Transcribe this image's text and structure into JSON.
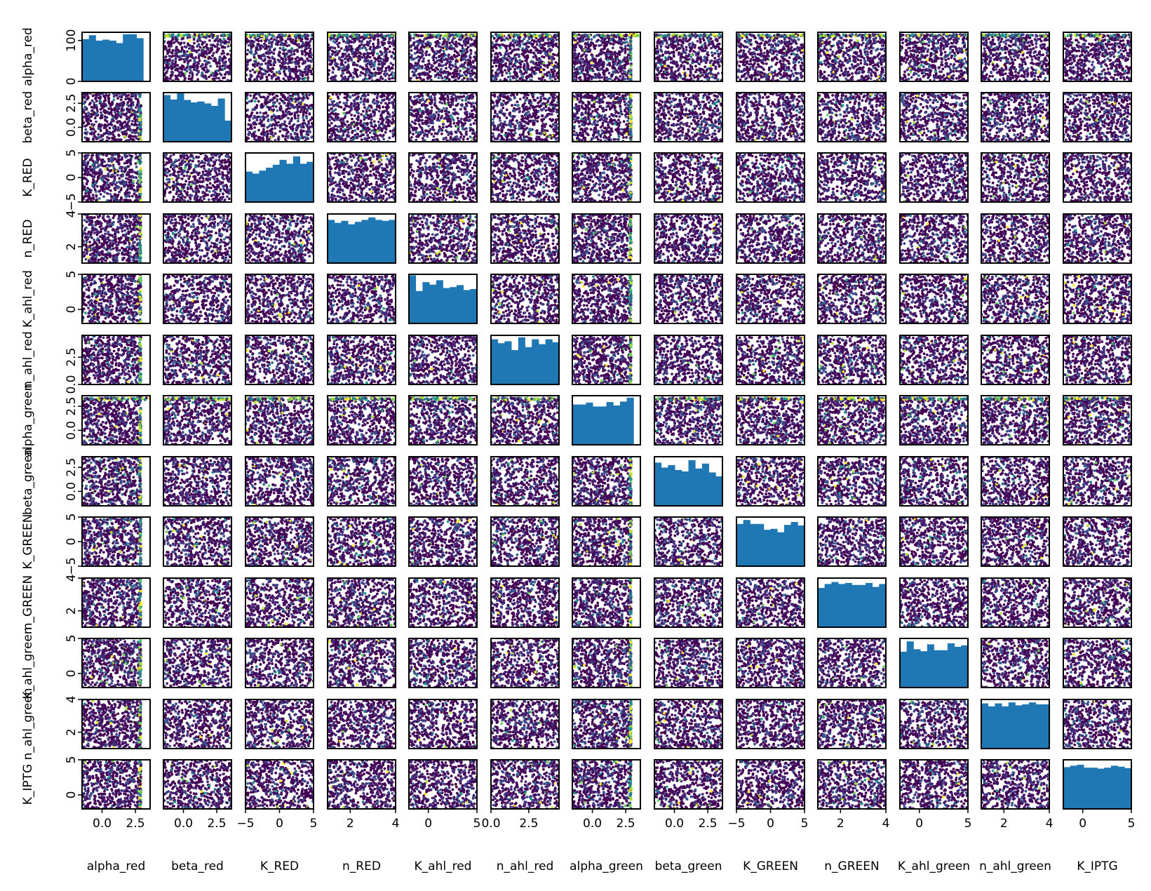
{
  "chart_data": {
    "type": "scatter",
    "layout": "pair-plot",
    "diagonal": "histogram",
    "off_diagonal": "scatter",
    "histogram_color": "#1f77b4",
    "scatter_colormap": "viridis",
    "histogram_bins": 10,
    "variables": [
      {
        "name": "alpha_red",
        "range": [
          -1.5,
          3.6
        ],
        "xticks": [
          {
            "v": 0,
            "label": "0.0"
          },
          {
            "v": 2.5,
            "label": "2.5"
          }
        ],
        "yrange": [
          0,
          120
        ],
        "yticks": [
          {
            "v": 0,
            "label": "0"
          },
          {
            "v": 100,
            "label": "100"
          }
        ],
        "hist": [
          0.86,
          0.94,
          0.83,
          0.85,
          0.83,
          0.78,
          0.96,
          0.96,
          0.88,
          0.0
        ]
      },
      {
        "name": "beta_red",
        "range": [
          -1.5,
          3.6
        ],
        "xticks": [
          {
            "v": 0,
            "label": "0.0"
          },
          {
            "v": 2.5,
            "label": "2.5"
          }
        ],
        "yrange": [
          -1.5,
          3.6
        ],
        "yticks": [
          {
            "v": 0,
            "label": "0.0"
          },
          {
            "v": 2.5,
            "label": "2.5"
          }
        ],
        "hist": [
          0.95,
          0.86,
          0.99,
          0.85,
          0.8,
          0.82,
          0.78,
          0.73,
          0.88,
          0.43
        ]
      },
      {
        "name": "K_RED",
        "range": [
          -5,
          5
        ],
        "xticks": [
          {
            "v": -5,
            "label": "−5"
          },
          {
            "v": 0,
            "label": "0"
          },
          {
            "v": 5,
            "label": "5"
          }
        ],
        "yrange": [
          -5,
          5
        ],
        "yticks": [
          {
            "v": -5,
            "label": "−5"
          },
          {
            "v": 0,
            "label": "0"
          },
          {
            "v": 5,
            "label": "5"
          }
        ],
        "hist": [
          0.62,
          0.58,
          0.64,
          0.7,
          0.76,
          0.86,
          0.78,
          0.93,
          0.78,
          0.82
        ]
      },
      {
        "name": "n_RED",
        "range": [
          1,
          4
        ],
        "xticks": [
          {
            "v": 2,
            "label": "2"
          },
          {
            "v": 4,
            "label": "4"
          }
        ],
        "yrange": [
          1,
          4
        ],
        "yticks": [
          {
            "v": 2,
            "label": "2"
          },
          {
            "v": 4,
            "label": "4"
          }
        ],
        "hist": [
          0.88,
          0.82,
          0.86,
          0.79,
          0.84,
          0.88,
          0.93,
          0.88,
          0.86,
          0.88
        ]
      },
      {
        "name": "K_ahl_red",
        "range": [
          -2,
          5
        ],
        "xticks": [
          {
            "v": 0,
            "label": "0"
          },
          {
            "v": 5,
            "label": "5"
          }
        ],
        "yrange": [
          -2,
          5
        ],
        "yticks": [
          {
            "v": 0,
            "label": "0"
          },
          {
            "v": 5,
            "label": "5"
          }
        ],
        "hist": [
          0.98,
          0.66,
          0.84,
          0.79,
          0.88,
          0.72,
          0.74,
          0.78,
          0.68,
          0.7
        ]
      },
      {
        "name": "n_ahl_red",
        "range": [
          0,
          4.5
        ],
        "xticks": [
          {
            "v": 0,
            "label": "0.0"
          },
          {
            "v": 2.5,
            "label": "2.5"
          }
        ],
        "yrange": [
          0,
          4.5
        ],
        "yticks": [
          {
            "v": 0,
            "label": "0.0"
          },
          {
            "v": 2.5,
            "label": "2.5"
          }
        ],
        "hist": [
          0.92,
          0.84,
          0.88,
          0.7,
          0.96,
          0.76,
          0.92,
          0.82,
          0.92,
          0.86
        ]
      },
      {
        "name": "alpha_green",
        "range": [
          -1.5,
          3.6
        ],
        "xticks": [
          {
            "v": 0,
            "label": "0.0"
          },
          {
            "v": 2.5,
            "label": "2.5"
          }
        ],
        "yrange": [
          -1.5,
          3.6
        ],
        "yticks": [
          {
            "v": 0,
            "label": "0.0"
          },
          {
            "v": 2.5,
            "label": "2.5"
          }
        ],
        "hist": [
          0.82,
          0.82,
          0.86,
          0.78,
          0.78,
          0.87,
          0.8,
          0.88,
          0.96,
          0.0
        ]
      },
      {
        "name": "beta_green",
        "range": [
          -1.5,
          3.6
        ],
        "xticks": [
          {
            "v": 0,
            "label": "0.0"
          },
          {
            "v": 2.5,
            "label": "2.5"
          }
        ],
        "yrange": [
          -1.5,
          3.6
        ],
        "yticks": [
          {
            "v": 0,
            "label": "0.0"
          },
          {
            "v": 2.5,
            "label": "2.5"
          }
        ],
        "hist": [
          0.88,
          0.78,
          0.83,
          0.73,
          0.7,
          0.93,
          0.76,
          0.86,
          0.68,
          0.6
        ]
      },
      {
        "name": "K_GREEN",
        "range": [
          -5,
          5
        ],
        "xticks": [
          {
            "v": -5,
            "label": "−5"
          },
          {
            "v": 0,
            "label": "0"
          },
          {
            "v": 5,
            "label": "5"
          }
        ],
        "yrange": [
          -5,
          5
        ],
        "yticks": [
          {
            "v": -5,
            "label": "−5"
          },
          {
            "v": 0,
            "label": "0"
          },
          {
            "v": 5,
            "label": "5"
          }
        ],
        "hist": [
          0.86,
          0.94,
          0.86,
          0.86,
          0.74,
          0.76,
          0.69,
          0.84,
          0.9,
          0.83
        ]
      },
      {
        "name": "n_GREEN",
        "range": [
          1,
          4
        ],
        "xticks": [
          {
            "v": 2,
            "label": "2"
          },
          {
            "v": 4,
            "label": "4"
          }
        ],
        "yrange": [
          1,
          4
        ],
        "yticks": [
          {
            "v": 2,
            "label": "2"
          },
          {
            "v": 4,
            "label": "4"
          }
        ],
        "hist": [
          0.8,
          0.88,
          0.92,
          0.88,
          0.9,
          0.86,
          0.86,
          0.9,
          0.82,
          0.88
        ]
      },
      {
        "name": "K_ahl_green",
        "range": [
          -2,
          5
        ],
        "xticks": [
          {
            "v": 0,
            "label": "0"
          },
          {
            "v": 5,
            "label": "5"
          }
        ],
        "yrange": [
          -2,
          5
        ],
        "yticks": [
          {
            "v": 0,
            "label": "0"
          },
          {
            "v": 5,
            "label": "5"
          }
        ],
        "hist": [
          0.73,
          0.94,
          0.78,
          0.74,
          0.88,
          0.76,
          0.76,
          0.9,
          0.83,
          0.86
        ]
      },
      {
        "name": "n_ahl_green",
        "range": [
          1,
          4
        ],
        "xticks": [
          {
            "v": 2,
            "label": "2"
          },
          {
            "v": 4,
            "label": "4"
          }
        ],
        "yrange": [
          1,
          4
        ],
        "yticks": [
          {
            "v": 2,
            "label": "2"
          },
          {
            "v": 4,
            "label": "4"
          }
        ],
        "hist": [
          0.92,
          0.86,
          0.92,
          0.86,
          0.94,
          0.88,
          0.9,
          0.94,
          0.9,
          0.9
        ]
      },
      {
        "name": "K_IPTG",
        "range": [
          -2,
          5
        ],
        "xticks": [
          {
            "v": 0,
            "label": "0"
          },
          {
            "v": 5,
            "label": "5"
          }
        ],
        "yrange": [
          -2,
          5
        ],
        "yticks": [
          {
            "v": 0,
            "label": "0"
          },
          {
            "v": 5,
            "label": "5"
          }
        ],
        "hist": [
          0.85,
          0.88,
          0.9,
          0.84,
          0.84,
          0.82,
          0.84,
          0.88,
          0.86,
          0.83
        ]
      }
    ],
    "grid": false,
    "legend": "none"
  }
}
